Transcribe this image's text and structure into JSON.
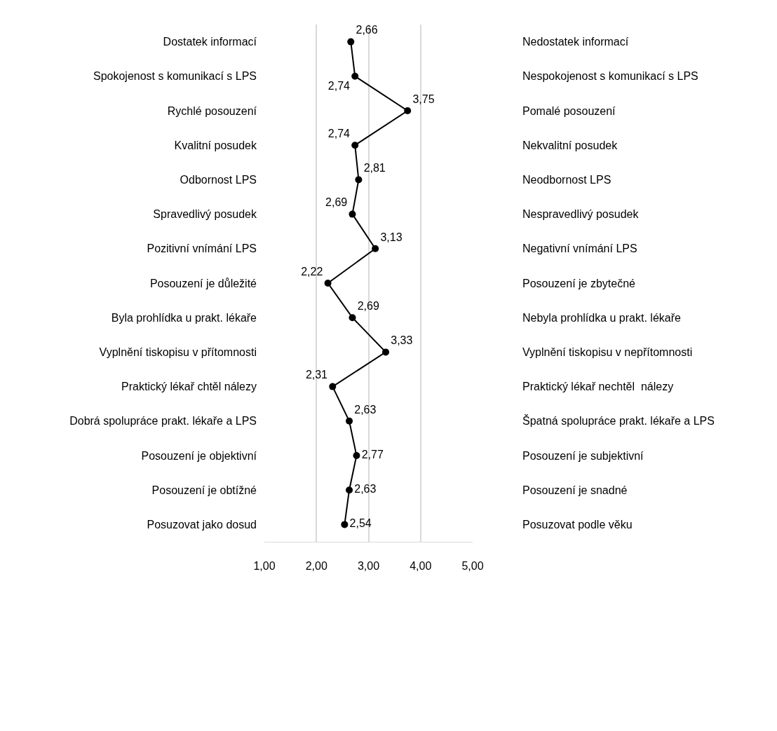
{
  "chart_data": {
    "type": "line",
    "orientation": "horizontal",
    "categories": [
      "Dostatek informací",
      "Spokojenost s komunikací s LPS",
      "Rychlé posouzení",
      "Kvalitní posudek",
      "Odbornost LPS",
      "Spravedlivý posudek",
      "Pozitivní vnímání LPS",
      "Posouzení je důležité",
      "Byla prohlídka u prakt. lékaře",
      "Vyplnění tiskopisu v přítomnosti",
      "Praktický lékař chtěl nálezy",
      "Dobrá spolupráce prakt. lékaře a LPS",
      "Posouzení je objektivní",
      "Posouzení je obtížné",
      "Posuzovat jako dosud"
    ],
    "y2_categories": [
      "Nedostatek informací",
      "Nespokojenost s komunikací s LPS",
      "Pomalé posouzení",
      "Nekvalitní posudek",
      "Neodbornost LPS",
      "Nespravedlivý posudek",
      "Negativní vnímání LPS",
      "Posouzení je zbytečné",
      "Nebyla prohlídka u prakt. lékaře",
      "Vyplnění tiskopisu v nepřítomnosti",
      "Praktický lékař nechtěl  nálezy",
      "Špatná spolupráce prakt. lékaře a LPS",
      "Posouzení je subjektivní",
      "Posouzení je snadné",
      "Posuzovat podle věku"
    ],
    "values": [
      2.66,
      2.74,
      3.75,
      2.74,
      2.81,
      2.69,
      3.13,
      2.22,
      2.69,
      3.33,
      2.31,
      2.63,
      2.77,
      2.63,
      2.54
    ],
    "value_labels": [
      "2,66",
      "2,74",
      "3,75",
      "2,74",
      "2,81",
      "2,69",
      "3,13",
      "2,22",
      "2,69",
      "3,33",
      "2,31",
      "2,63",
      "2,77",
      "2,63",
      "2,54"
    ],
    "color": "#000000",
    "marker": "circle",
    "line_style": "solid",
    "grid": "x",
    "xlim": [
      1,
      5
    ],
    "xticks": [
      {
        "value": 1,
        "label": "1,00"
      },
      {
        "value": 2,
        "label": "2,00"
      },
      {
        "value": 3,
        "label": "3,00"
      },
      {
        "value": 4,
        "label": "4,00"
      },
      {
        "value": 5,
        "label": "5,00"
      }
    ]
  }
}
